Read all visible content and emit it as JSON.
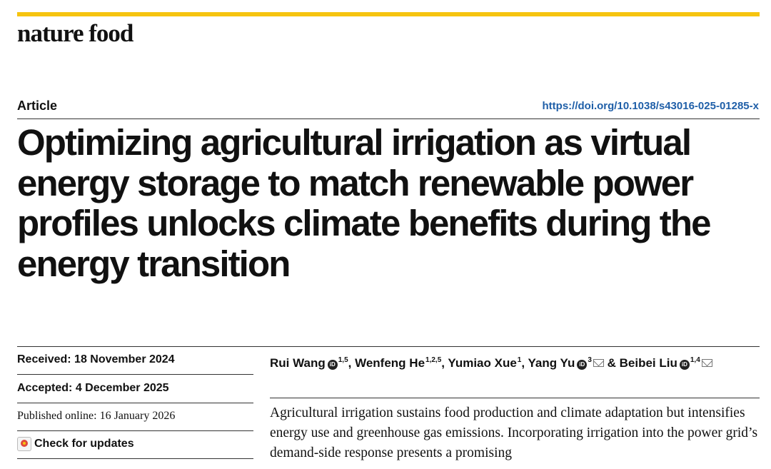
{
  "journal": {
    "name": "nature food"
  },
  "colors": {
    "accent_bar": "#f6c40f",
    "doi_link": "#1f5fa8"
  },
  "article": {
    "type": "Article",
    "doi": "https://doi.org/10.1038/s43016-025-01285-x",
    "title": "Optimizing agricultural irrigation as virtual energy storage to match renewable power profiles unlocks climate benefits during the energy transition"
  },
  "dates": {
    "received_label": "Received:",
    "received": "18 November 2024",
    "accepted_label": "Accepted:",
    "accepted": "4 December 2025",
    "published_label": "Published online:",
    "published": "16 January 2026"
  },
  "check_updates": {
    "label": "Check for updates",
    "icon": "check-updates-icon"
  },
  "authors": [
    {
      "name": "Rui Wang",
      "orcid": true,
      "affil": "1,5",
      "mail": false,
      "sep": ", "
    },
    {
      "name": "Wenfeng He",
      "orcid": false,
      "affil": "1,2,5",
      "mail": false,
      "sep": ", "
    },
    {
      "name": "Yumiao Xue",
      "orcid": false,
      "affil": "1",
      "mail": false,
      "sep": ", "
    },
    {
      "name": "Yang Yu",
      "orcid": true,
      "affil": "3",
      "mail": true,
      "sep": " & "
    },
    {
      "name": "Beibei Liu",
      "orcid": true,
      "affil": "1,4",
      "mail": true,
      "sep": ""
    }
  ],
  "abstract": "Agricultural irrigation sustains food production and climate adaptation but intensifies energy use and greenhouse gas emissions. Incorporating irrigation into the power grid’s demand-side response presents a promising"
}
